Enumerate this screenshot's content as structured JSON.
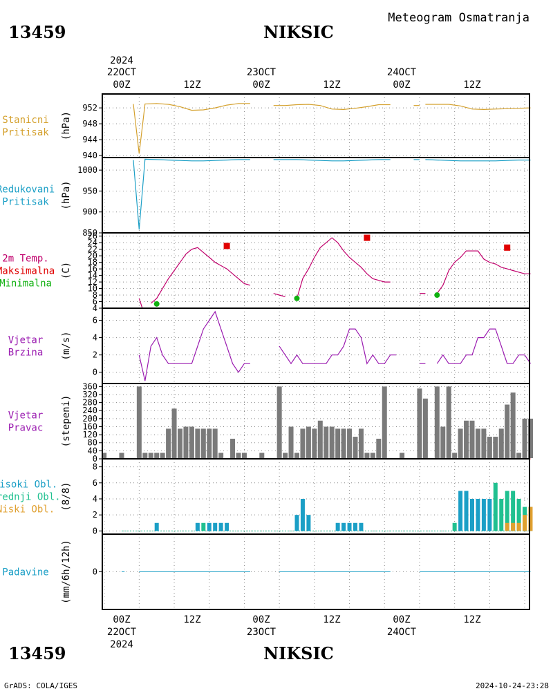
{
  "header": {
    "station_id": "13459",
    "station_name": "NIKSIC",
    "subtitle": "Meteogram Osmatranja"
  },
  "time_axis": {
    "top_year": "2024",
    "bottom_year": "2024",
    "dates": [
      "22OCT",
      "23OCT",
      "24OCT"
    ],
    "hour_labels": [
      "00Z",
      "12Z",
      "00Z",
      "12Z",
      "00Z",
      "12Z"
    ]
  },
  "footer": {
    "left": "GrADS: COLA/IGES",
    "right": "2024-10-24-23:28"
  },
  "panels": [
    {
      "id": "stanicni",
      "lines": [
        "Stanicni",
        "Pritisak"
      ],
      "colors": [
        "#d4a02c",
        "#d4a02c"
      ],
      "unit": "(hPa)"
    },
    {
      "id": "redukovani",
      "lines": [
        "Redukovani",
        "Pritisak"
      ],
      "colors": [
        "#1b9fc6",
        "#1b9fc6"
      ],
      "unit": "(hPa)"
    },
    {
      "id": "temp",
      "lines": [
        "2m Temp.",
        "Maksimalna",
        "Minimalna"
      ],
      "colors": [
        "#c0006c",
        "#e00000",
        "#10b010"
      ],
      "unit": "(C)"
    },
    {
      "id": "brzina",
      "lines": [
        "Vjetar",
        "Brzina"
      ],
      "colors": [
        "#9a1ab0",
        "#9a1ab0"
      ],
      "unit": "(m/s)"
    },
    {
      "id": "pravac",
      "lines": [
        "Vjetar",
        "Pravac"
      ],
      "colors": [
        "#9a1ab0",
        "#9a1ab0"
      ],
      "unit": "(stepeni)"
    },
    {
      "id": "oblaci",
      "lines": [
        "Visoki Obl.",
        "Srednji Obl.",
        "Niski Obl."
      ],
      "colors": [
        "#1b9fc6",
        "#20c090",
        "#e0a030"
      ],
      "unit": "(8/8)"
    },
    {
      "id": "padavine",
      "lines": [
        "Padavine"
      ],
      "colors": [
        "#1b9fc6"
      ],
      "unit": "(mm/6h/12h)"
    }
  ],
  "chart_data": [
    {
      "type": "line",
      "panel": "stanicni",
      "title": "Stanicni Pritisak",
      "ylabel": "(hPa)",
      "x_unit": "hours since 22OCT 00Z",
      "ylim": [
        939.5,
        955.5
      ],
      "yticks": [
        940,
        944,
        948,
        952
      ],
      "color": "#d4a02c",
      "segments": [
        {
          "x": [
            2,
            3,
            4,
            6,
            8,
            10,
            12,
            14,
            16,
            18,
            20,
            22
          ],
          "y": [
            953,
            940.5,
            953,
            953.1,
            952.9,
            952.3,
            951.4,
            951.5,
            952,
            952.7,
            953.1,
            953.1
          ]
        },
        {
          "x": [
            26,
            28,
            30,
            32,
            34,
            36,
            38,
            40,
            42,
            44,
            46
          ],
          "y": [
            952.6,
            952.6,
            952.8,
            952.9,
            952.6,
            951.7,
            951.6,
            951.9,
            952.3,
            952.8,
            952.8
          ]
        },
        {
          "x": [
            50,
            51
          ],
          "y": [
            952.6,
            952.6
          ]
        },
        {
          "x": [
            52,
            54,
            56,
            58,
            60,
            62,
            64,
            66,
            68,
            70
          ],
          "y": [
            952.9,
            952.9,
            952.9,
            952.5,
            951.7,
            951.6,
            951.7,
            951.8,
            951.9,
            952
          ]
        }
      ]
    },
    {
      "type": "line",
      "panel": "redukovani",
      "title": "Redukovani Pritisak",
      "ylabel": "(hPa)",
      "x_unit": "hours since 22OCT 00Z",
      "ylim": [
        850,
        1030
      ],
      "yticks": [
        850,
        900,
        950,
        1000
      ],
      "color": "#1b9fc6",
      "segments": [
        {
          "x": [
            2,
            3,
            4,
            6,
            8,
            10,
            12,
            14,
            16,
            18,
            20,
            22
          ],
          "y": [
            1024,
            858,
            1026,
            1025,
            1024,
            1023,
            1022,
            1022,
            1023,
            1024,
            1025,
            1025
          ]
        },
        {
          "x": [
            26,
            28,
            30,
            32,
            34,
            36,
            38,
            40,
            42,
            44,
            46
          ],
          "y": [
            1025,
            1025,
            1025,
            1024,
            1023,
            1022,
            1022,
            1023,
            1024,
            1025,
            1025
          ]
        },
        {
          "x": [
            50,
            51
          ],
          "y": [
            1025,
            1025
          ]
        },
        {
          "x": [
            52,
            54,
            56,
            58,
            60,
            62,
            64,
            66,
            68,
            70
          ],
          "y": [
            1025,
            1024,
            1023,
            1022,
            1022,
            1022,
            1022,
            1023,
            1024,
            1024
          ]
        }
      ]
    },
    {
      "type": "line",
      "panel": "temp",
      "title": "2m Temp. Maksimalna Minimalna",
      "ylabel": "(C)",
      "x_unit": "hours since 22OCT 00Z",
      "ylim": [
        4,
        27
      ],
      "yticks": [
        4,
        6,
        8,
        10,
        12,
        14,
        16,
        18,
        20,
        22,
        24,
        26
      ],
      "series": [
        {
          "name": "2m Temp.",
          "color": "#c0006c",
          "segments": [
            {
              "x": [
                3,
                3.5
              ],
              "y": [
                7,
                4.2
              ]
            },
            {
              "x": [
                5,
                6,
                7,
                8,
                9,
                10,
                11,
                12,
                13,
                14,
                15,
                16,
                17,
                18,
                19,
                20,
                21,
                22
              ],
              "y": [
                5.5,
                7,
                10,
                13,
                15.5,
                18,
                20.5,
                22,
                22.5,
                21,
                19.5,
                18,
                17,
                16,
                14.5,
                13,
                11.5,
                11
              ]
            },
            {
              "x": [
                26,
                27,
                28
              ],
              "y": [
                8.5,
                8,
                7.5
              ]
            },
            {
              "x": [
                30,
                31,
                32,
                33,
                34,
                35,
                36,
                37,
                38,
                39,
                40,
                41,
                42,
                43,
                44,
                45,
                46
              ],
              "y": [
                7,
                13,
                16,
                19.5,
                22.5,
                24,
                25.5,
                24,
                21.5,
                19.5,
                18,
                16.5,
                14.5,
                13,
                12.5,
                12,
                12
              ]
            },
            {
              "x": [
                51,
                52
              ],
              "y": [
                8.5,
                8.5
              ]
            },
            {
              "x": [
                54,
                55,
                56,
                57,
                58,
                59,
                60,
                61,
                62,
                63,
                64,
                65,
                66,
                67,
                68,
                69,
                70
              ],
              "y": [
                8.5,
                11,
                15.5,
                18,
                19.5,
                21.5,
                21.5,
                21.5,
                19,
                18,
                17.5,
                16.5,
                16,
                15.5,
                15,
                14.5,
                14.5
              ]
            }
          ]
        },
        {
          "name": "Maksimalna",
          "color": "#e00000",
          "type": "scatter",
          "x": [
            18,
            42,
            66
          ],
          "y": [
            23,
            25.5,
            22.5
          ]
        },
        {
          "name": "Minimalna",
          "color": "#10b010",
          "type": "scatter",
          "x": [
            6,
            30,
            54
          ],
          "y": [
            5.3,
            7,
            8
          ]
        }
      ]
    },
    {
      "type": "line",
      "panel": "brzina",
      "title": "Vjetar Brzina",
      "ylabel": "(m/s)",
      "x_unit": "hours since 22OCT 00Z",
      "ylim": [
        -1.3,
        7.4
      ],
      "yticks": [
        0,
        2,
        4,
        6
      ],
      "color": "#9a1ab0",
      "segments": [
        {
          "x": [
            3,
            4,
            5,
            6,
            7,
            8,
            9,
            10,
            11,
            12,
            13,
            14,
            15,
            16,
            17,
            18,
            19,
            20,
            21,
            22
          ],
          "y": [
            2,
            -1,
            3,
            4,
            2,
            1,
            1,
            1,
            1,
            1,
            3,
            5,
            6,
            7,
            5,
            3,
            1,
            0,
            1,
            1
          ]
        },
        {
          "x": [
            27,
            28,
            29,
            30,
            31,
            32,
            33,
            34,
            35,
            36,
            37,
            38,
            39,
            40,
            41,
            42,
            43,
            44,
            45,
            46,
            47
          ],
          "y": [
            3,
            2,
            1,
            2,
            1,
            1,
            1,
            1,
            1,
            2,
            2,
            3,
            5,
            5,
            4,
            1,
            2,
            1,
            1,
            2,
            2
          ]
        },
        {
          "x": [
            51,
            52
          ],
          "y": [
            1,
            1
          ]
        },
        {
          "x": [
            54,
            55,
            56,
            57,
            58,
            59,
            60,
            61,
            62,
            63,
            64,
            65,
            66,
            67,
            68,
            69,
            70
          ],
          "y": [
            1,
            2,
            1,
            1,
            1,
            2,
            2,
            4,
            4,
            5,
            5,
            3,
            1,
            1,
            2,
            2,
            1
          ]
        }
      ]
    },
    {
      "type": "bar",
      "panel": "pravac",
      "title": "Vjetar Pravac",
      "ylabel": "(stepeni)",
      "x_unit": "hours since 22OCT 00Z",
      "ylim": [
        0,
        375
      ],
      "yticks": [
        0,
        40,
        80,
        120,
        160,
        200,
        240,
        280,
        320,
        360
      ],
      "color": "#7a7a7a",
      "x": [
        -3,
        0,
        3,
        4,
        5,
        6,
        7,
        8,
        9,
        10,
        11,
        12,
        13,
        14,
        15,
        16,
        17,
        18,
        19,
        20,
        21,
        24,
        27,
        28,
        29,
        30,
        31,
        32,
        33,
        34,
        35,
        36,
        37,
        38,
        39,
        40,
        41,
        42,
        43,
        44,
        45,
        48,
        51,
        52,
        53,
        54,
        55,
        56,
        57,
        58,
        59,
        60,
        61,
        62,
        63,
        64,
        65,
        66,
        67,
        68,
        69,
        70
      ],
      "values": [
        30,
        30,
        360,
        30,
        30,
        30,
        30,
        150,
        250,
        150,
        160,
        160,
        150,
        150,
        150,
        150,
        30,
        0,
        100,
        30,
        30,
        30,
        360,
        30,
        160,
        30,
        150,
        160,
        150,
        190,
        160,
        160,
        150,
        150,
        150,
        110,
        150,
        30,
        30,
        100,
        360,
        30,
        350,
        300,
        0,
        360,
        160,
        360,
        30,
        150,
        190,
        190,
        150,
        150,
        110,
        110,
        150,
        270,
        330,
        30,
        200,
        200
      ]
    },
    {
      "type": "bar",
      "panel": "oblaci",
      "title": "Visoki Obl. Srednji Obl. Niski Obl.",
      "ylabel": "(8/8)",
      "x_unit": "hours since 22OCT 00Z",
      "ylim": [
        -0.4,
        9
      ],
      "yticks": [
        0,
        2,
        4,
        6,
        8
      ],
      "series": [
        {
          "name": "Visoki Obl.",
          "color": "#1b9fc6",
          "x": [
            6,
            13,
            15,
            16,
            17,
            18,
            30,
            31,
            32,
            37,
            38,
            39,
            40,
            41,
            58,
            59,
            60,
            61,
            62,
            63
          ],
          "values": [
            1,
            1,
            1,
            1,
            1,
            1,
            2,
            4,
            2,
            1,
            1,
            1,
            1,
            1,
            5,
            5,
            4,
            4,
            4,
            4
          ]
        },
        {
          "name": "Srednji Obl.",
          "color": "#20c090",
          "x": [
            14,
            57,
            64,
            65,
            66,
            67,
            68,
            69,
            70
          ],
          "values": [
            1,
            1,
            6,
            4,
            5,
            5,
            4,
            3,
            3
          ]
        },
        {
          "name": "Niski Obl.",
          "color": "#e0a030",
          "x": [
            66,
            67,
            68,
            69,
            70
          ],
          "values": [
            1,
            1,
            1,
            2,
            3
          ]
        }
      ]
    },
    {
      "type": "line",
      "panel": "padavine",
      "title": "Padavine",
      "ylabel": "(mm/6h/12h)",
      "x_unit": "hours since 22OCT 00Z",
      "ylim": [
        -5,
        5
      ],
      "yticks": [
        0
      ],
      "color": "#1b9fc6",
      "segments": [
        {
          "x": [
            0,
            0.5
          ],
          "y": [
            0,
            0
          ]
        },
        {
          "x": [
            3,
            22
          ],
          "y": [
            0,
            0
          ]
        },
        {
          "x": [
            27,
            46
          ],
          "y": [
            0,
            0
          ]
        },
        {
          "x": [
            51,
            70
          ],
          "y": [
            0,
            0
          ]
        }
      ]
    }
  ]
}
